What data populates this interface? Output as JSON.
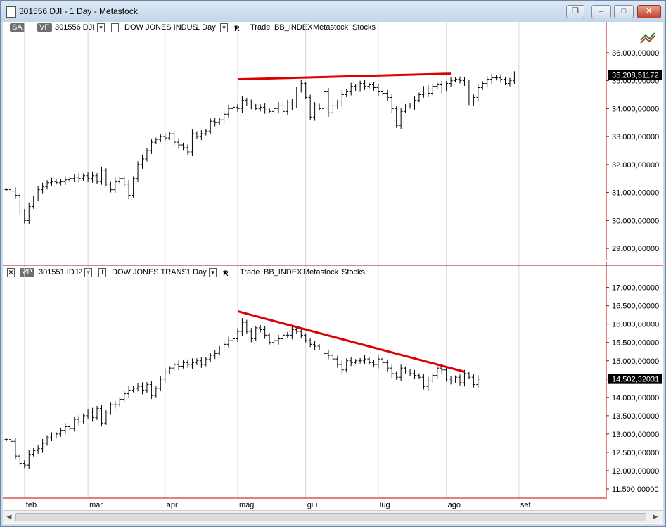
{
  "window": {
    "title": "301556 DJI - 1 Day - Metastock",
    "buttons": [
      "restore",
      "minimize",
      "maximize",
      "close"
    ]
  },
  "pane1": {
    "sa": "SA",
    "vp": "VP",
    "symbol": "301556 DJI",
    "name": "DOW JONES INDUS",
    "period": "1 Day",
    "r": "R",
    "mode": "Trade",
    "type": "BB_INDEX",
    "source": "Metastock",
    "category": "Stocks"
  },
  "pane2": {
    "vp": "VP",
    "symbol": "301551 IDJ2",
    "name": "DOW JONES TRANS",
    "period": "1 Day",
    "r": "R",
    "mode": "Trade",
    "type": "BB_INDEX",
    "source": "Metastock",
    "category": "Stocks"
  },
  "chart_data": [
    {
      "type": "ohlc",
      "ylim": [
        28600000,
        36600000
      ],
      "yticks": [
        "29.000,00000",
        "30.000,00000",
        "31.000,00000",
        "32.000,00000",
        "33.000,00000",
        "34.000,00000",
        "35.000,00000",
        "36.000,00000"
      ],
      "ytick_values": [
        29000000,
        30000000,
        31000000,
        32000000,
        33000000,
        34000000,
        35000000,
        36000000
      ],
      "last_value_label": "35.208,51172",
      "last_value": 35208511.72,
      "trend_color": "#dd0000",
      "trend_line": {
        "x": [
          51,
          98
        ],
        "y": [
          35050000,
          35250000
        ]
      },
      "closes": [
        31100000,
        31050000,
        30900000,
        30300000,
        30000000,
        30500000,
        30800000,
        31100000,
        31200000,
        31350000,
        31400000,
        31350000,
        31400000,
        31450000,
        31500000,
        31550000,
        31500000,
        31600000,
        31500000,
        31600000,
        31400000,
        31800000,
        31300000,
        31100000,
        31400000,
        31500000,
        31300000,
        30900000,
        31500000,
        32000000,
        32200000,
        32500000,
        32800000,
        32900000,
        33000000,
        32950000,
        33100000,
        32800000,
        32700000,
        32600000,
        32450000,
        33100000,
        33000000,
        33100000,
        33200000,
        33550000,
        33500000,
        33600000,
        33800000,
        34000000,
        34050000,
        34000000,
        34300000,
        34200000,
        34100000,
        34000000,
        34050000,
        33950000,
        33900000,
        34000000,
        34100000,
        33900000,
        34200000,
        34100000,
        34700000,
        34900000,
        34400000,
        33700000,
        34100000,
        34000000,
        34600000,
        33850000,
        34100000,
        34200000,
        34500000,
        34600000,
        34800000,
        34700000,
        34900000,
        34800000,
        34850000,
        34750000,
        34600000,
        34550000,
        34400000,
        34000000,
        33400000,
        33900000,
        34100000,
        34100000,
        34300000,
        34500000,
        34700000,
        34550000,
        34800000,
        34850000,
        34700000,
        34900000,
        35000000,
        35050000,
        35000000,
        34950000,
        34200000,
        34400000,
        34750000,
        34900000,
        35050000,
        35100000,
        35100000,
        35050000,
        34900000,
        35000000,
        35200000
      ],
      "x_labels": [
        "feb",
        "mar",
        "apr",
        "mag",
        "giu",
        "lug",
        "ago",
        "set"
      ],
      "x_label_index": [
        4,
        18,
        35,
        51,
        66,
        82,
        97,
        113
      ]
    },
    {
      "type": "ohlc",
      "ylim": [
        11250000,
        17300000
      ],
      "yticks": [
        "11.500,00000",
        "12.000,00000",
        "12.500,00000",
        "13.000,00000",
        "13.500,00000",
        "14.000,00000",
        "14.500,00000",
        "15.000,00000",
        "15.500,00000",
        "16.000,00000",
        "16.500,00000",
        "17.000,00000"
      ],
      "ytick_values": [
        11500000,
        12000000,
        12500000,
        13000000,
        13500000,
        14000000,
        14500000,
        15000000,
        15500000,
        16000000,
        16500000,
        17000000
      ],
      "last_value_label": "14.502,32031",
      "last_value": 14502320.31,
      "trend_color": "#dd0000",
      "trend_line": {
        "x": [
          51,
          101
        ],
        "y": [
          16350000,
          14700000
        ]
      },
      "closes": [
        12850000,
        12800000,
        12400000,
        12200000,
        12150000,
        12450000,
        12550000,
        12600000,
        12750000,
        12900000,
        12950000,
        13000000,
        13100000,
        13200000,
        13150000,
        13400000,
        13350000,
        13500000,
        13600000,
        13450000,
        13700000,
        13300000,
        13600000,
        13800000,
        13800000,
        13950000,
        14100000,
        14200000,
        14250000,
        14300000,
        14200000,
        14350000,
        14050000,
        14250000,
        14500000,
        14700000,
        14800000,
        14900000,
        14850000,
        14950000,
        14900000,
        14950000,
        15000000,
        14900000,
        15050000,
        15150000,
        15200000,
        15350000,
        15450000,
        15550000,
        15600000,
        15800000,
        16050000,
        15800000,
        15600000,
        15900000,
        15850000,
        15700000,
        15500000,
        15550000,
        15600000,
        15700000,
        15700000,
        15850000,
        15800000,
        15700000,
        15550000,
        15450000,
        15400000,
        15350000,
        15200000,
        15150000,
        15050000,
        14900000,
        14750000,
        15000000,
        14950000,
        15000000,
        15000000,
        15050000,
        14950000,
        14900000,
        15050000,
        14950000,
        14800000,
        14650000,
        14550000,
        14800000,
        14700000,
        14650000,
        14600000,
        14550000,
        14300000,
        14450000,
        14600000,
        14800000,
        14750000,
        14500000,
        14450000,
        14550000,
        14400000,
        14650000,
        14550000,
        14350000,
        14500000
      ]
    }
  ]
}
